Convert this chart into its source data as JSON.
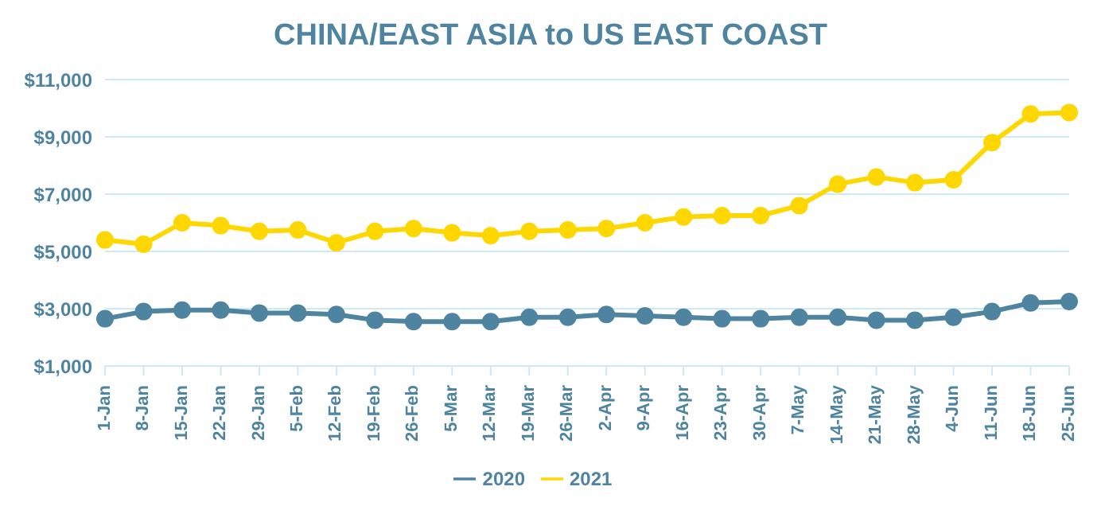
{
  "chart_data": {
    "type": "line",
    "title": "CHINA/EAST ASIA to US EAST COAST",
    "categories": [
      "1-Jan",
      "8-Jan",
      "15-Jan",
      "22-Jan",
      "29-Jan",
      "5-Feb",
      "12-Feb",
      "19-Feb",
      "26-Feb",
      "5-Mar",
      "12-Mar",
      "19-Mar",
      "26-Mar",
      "2-Apr",
      "9-Apr",
      "16-Apr",
      "23-Apr",
      "30-Apr",
      "7-May",
      "14-May",
      "21-May",
      "28-May",
      "4-Jun",
      "11-Jun",
      "18-Jun",
      "25-Jun"
    ],
    "series": [
      {
        "name": "2020",
        "color": "#4e84a0",
        "values": [
          2650,
          2900,
          2950,
          2950,
          2850,
          2850,
          2800,
          2600,
          2550,
          2550,
          2550,
          2700,
          2700,
          2800,
          2750,
          2700,
          2650,
          2650,
          2700,
          2700,
          2600,
          2600,
          2700,
          2900,
          3200,
          3250
        ]
      },
      {
        "name": "2021",
        "color": "#ffd700",
        "values": [
          5400,
          5250,
          6000,
          5900,
          5700,
          5750,
          5300,
          5700,
          5800,
          5650,
          5550,
          5700,
          5750,
          5800,
          6000,
          6200,
          6250,
          6250,
          6600,
          7350,
          7600,
          7400,
          7500,
          8800,
          9800,
          9850
        ]
      }
    ],
    "ylim": [
      1000,
      11000
    ],
    "yticks": [
      {
        "value": 1000,
        "label": "$1,000"
      },
      {
        "value": 3000,
        "label": "$3,000"
      },
      {
        "value": 5000,
        "label": "$5,000"
      },
      {
        "value": 7000,
        "label": "$7,000"
      },
      {
        "value": 9000,
        "label": "$9,000"
      },
      {
        "value": 11000,
        "label": "$11,000"
      }
    ],
    "grid": "y",
    "legend": "bottom",
    "marker": "circle",
    "line_style": "solid"
  }
}
